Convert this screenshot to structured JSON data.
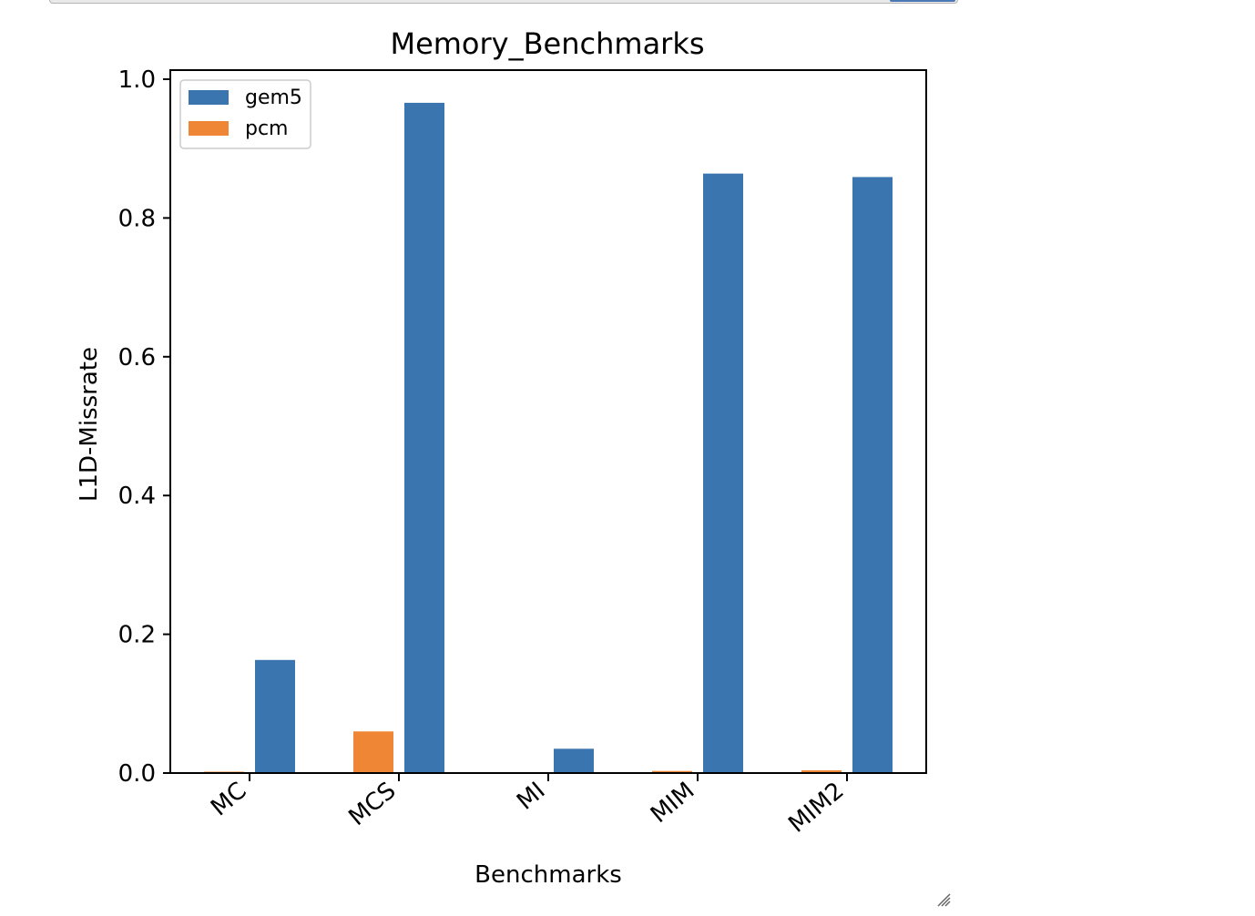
{
  "chart_data": {
    "type": "bar",
    "title": "Memory_Benchmarks",
    "xlabel": "Benchmarks",
    "ylabel": "L1D-Missrate",
    "categories": [
      "MC",
      "MCS",
      "MI",
      "MIM",
      "MIM2"
    ],
    "series": [
      {
        "name": "pcm",
        "color": "#ef8636",
        "values": [
          0.002,
          0.06,
          0.001,
          0.003,
          0.004
        ]
      },
      {
        "name": "gem5",
        "color": "#3b75af",
        "values": [
          0.163,
          0.966,
          0.035,
          0.864,
          0.859
        ]
      }
    ],
    "legend_order": [
      "gem5",
      "pcm"
    ],
    "ylim": [
      0,
      1.0
    ],
    "yticks": [
      "0.0",
      "0.2",
      "0.4",
      "0.6",
      "0.8",
      "1.0"
    ],
    "grid": false,
    "legend_position": "top-left",
    "xtick_rotation": "40 degrees"
  }
}
